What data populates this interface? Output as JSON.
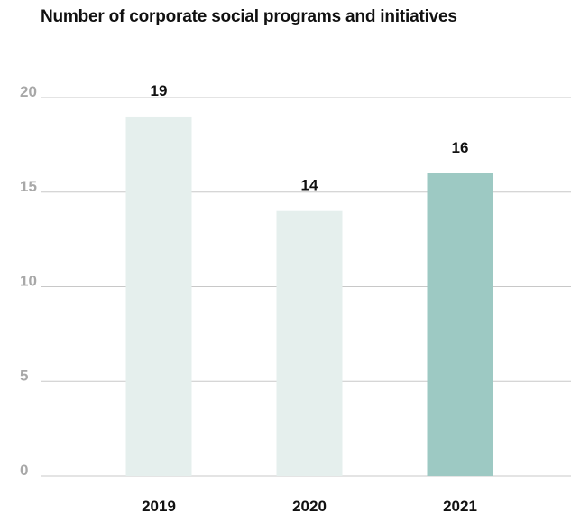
{
  "chart_data": {
    "type": "bar",
    "title": "Number of corporate social programs and initiatives",
    "categories": [
      "2019",
      "2020",
      "2021"
    ],
    "values": [
      19,
      14,
      16
    ],
    "data_labels": [
      "19",
      "14",
      "16"
    ],
    "bar_colors": [
      "#e5efed",
      "#e5efed",
      "#9dc9c3"
    ],
    "ylim": [
      0,
      20
    ],
    "yticks": [
      0,
      5,
      10,
      15,
      20
    ],
    "grid": true,
    "gridline_color": "#c8c8c8",
    "xlabel": "",
    "ylabel": ""
  }
}
